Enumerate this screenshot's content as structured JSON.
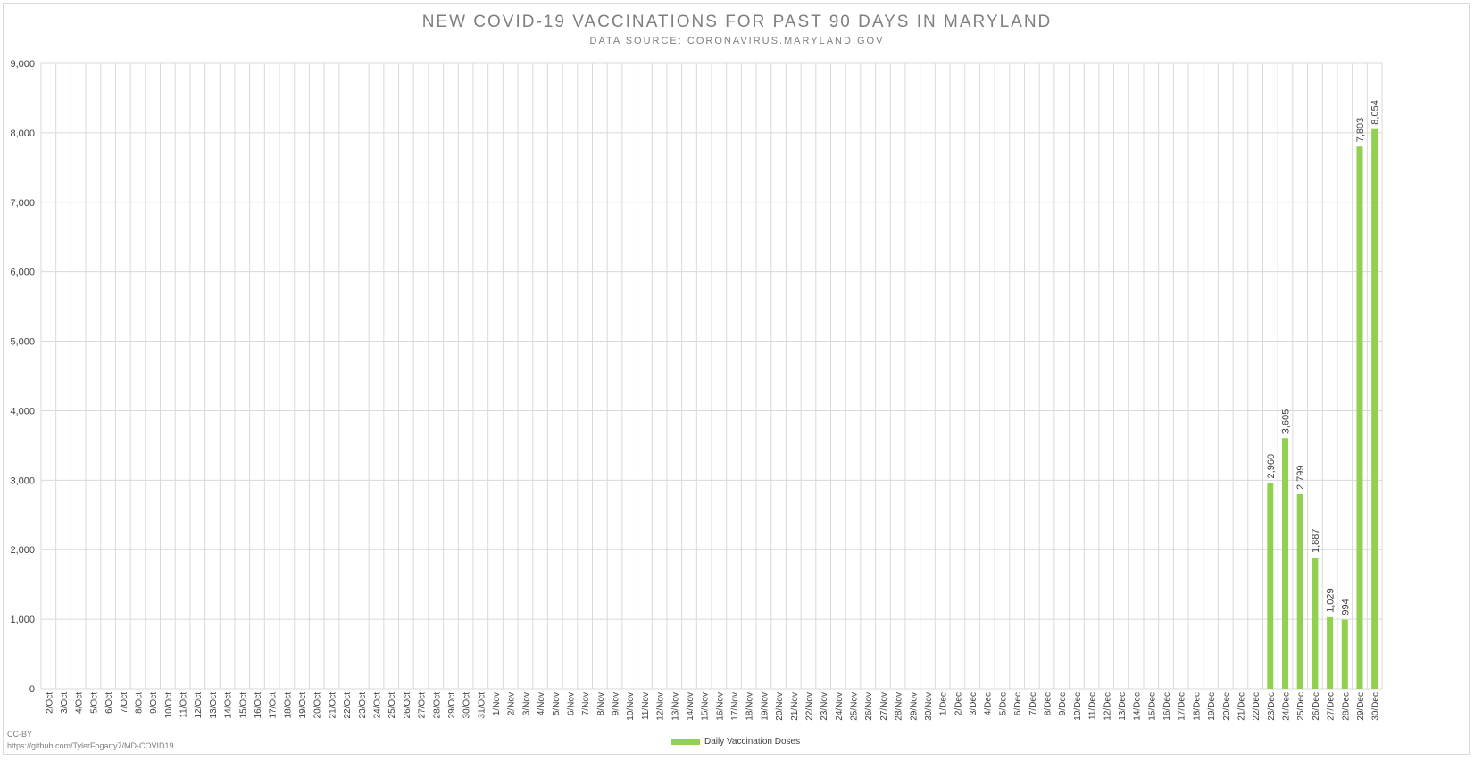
{
  "chart_data": {
    "type": "bar",
    "title": "NEW COVID-19 VACCINATIONS FOR PAST 90 DAYS IN MARYLAND",
    "subtitle": "DATA SOURCE: CORONAVIRUS.MARYLAND.GOV",
    "xlabel": "",
    "ylabel": "",
    "ylim": [
      0,
      9000
    ],
    "yticks": [
      0,
      1000,
      2000,
      3000,
      4000,
      5000,
      6000,
      7000,
      8000,
      9000
    ],
    "ytick_labels": [
      "0",
      "1,000",
      "2,000",
      "3,000",
      "4,000",
      "5,000",
      "6,000",
      "7,000",
      "8,000",
      "9,000"
    ],
    "grid": true,
    "legend_position": "bottom",
    "categories": [
      "2/Oct",
      "3/Oct",
      "4/Oct",
      "5/Oct",
      "6/Oct",
      "7/Oct",
      "8/Oct",
      "9/Oct",
      "10/Oct",
      "11/Oct",
      "12/Oct",
      "13/Oct",
      "14/Oct",
      "15/Oct",
      "16/Oct",
      "17/Oct",
      "18/Oct",
      "19/Oct",
      "20/Oct",
      "21/Oct",
      "22/Oct",
      "23/Oct",
      "24/Oct",
      "25/Oct",
      "26/Oct",
      "27/Oct",
      "28/Oct",
      "29/Oct",
      "30/Oct",
      "31/Oct",
      "1/Nov",
      "2/Nov",
      "3/Nov",
      "4/Nov",
      "5/Nov",
      "6/Nov",
      "7/Nov",
      "8/Nov",
      "9/Nov",
      "10/Nov",
      "11/Nov",
      "12/Nov",
      "13/Nov",
      "14/Nov",
      "15/Nov",
      "16/Nov",
      "17/Nov",
      "18/Nov",
      "19/Nov",
      "20/Nov",
      "21/Nov",
      "22/Nov",
      "23/Nov",
      "24/Nov",
      "25/Nov",
      "26/Nov",
      "27/Nov",
      "28/Nov",
      "29/Nov",
      "30/Nov",
      "1/Dec",
      "2/Dec",
      "3/Dec",
      "4/Dec",
      "5/Dec",
      "6/Dec",
      "7/Dec",
      "8/Dec",
      "9/Dec",
      "10/Dec",
      "11/Dec",
      "12/Dec",
      "13/Dec",
      "14/Dec",
      "15/Dec",
      "16/Dec",
      "17/Dec",
      "18/Dec",
      "19/Dec",
      "20/Dec",
      "21/Dec",
      "22/Dec",
      "23/Dec",
      "24/Dec",
      "25/Dec",
      "26/Dec",
      "27/Dec",
      "28/Dec",
      "29/Dec",
      "30/Dec"
    ],
    "series": [
      {
        "name": "Daily Vaccination Doses",
        "color": "#92d050",
        "values": [
          null,
          null,
          null,
          null,
          null,
          null,
          null,
          null,
          null,
          null,
          null,
          null,
          null,
          null,
          null,
          null,
          null,
          null,
          null,
          null,
          null,
          null,
          null,
          null,
          null,
          null,
          null,
          null,
          null,
          null,
          null,
          null,
          null,
          null,
          null,
          null,
          null,
          null,
          null,
          null,
          null,
          null,
          null,
          null,
          null,
          null,
          null,
          null,
          null,
          null,
          null,
          null,
          null,
          null,
          null,
          null,
          null,
          null,
          null,
          null,
          null,
          null,
          null,
          null,
          null,
          null,
          null,
          null,
          null,
          null,
          null,
          null,
          null,
          null,
          null,
          null,
          null,
          null,
          null,
          null,
          null,
          null,
          2960,
          3605,
          2799,
          1887,
          1029,
          994,
          7803,
          8054
        ],
        "data_labels": [
          null,
          null,
          null,
          null,
          null,
          null,
          null,
          null,
          null,
          null,
          null,
          null,
          null,
          null,
          null,
          null,
          null,
          null,
          null,
          null,
          null,
          null,
          null,
          null,
          null,
          null,
          null,
          null,
          null,
          null,
          null,
          null,
          null,
          null,
          null,
          null,
          null,
          null,
          null,
          null,
          null,
          null,
          null,
          null,
          null,
          null,
          null,
          null,
          null,
          null,
          null,
          null,
          null,
          null,
          null,
          null,
          null,
          null,
          null,
          null,
          null,
          null,
          null,
          null,
          null,
          null,
          null,
          null,
          null,
          null,
          null,
          null,
          null,
          null,
          null,
          null,
          null,
          null,
          null,
          null,
          null,
          null,
          "2,960",
          "3,605",
          "2,799",
          "1,887",
          "1,029",
          "994",
          "7,803",
          "8,054"
        ]
      }
    ]
  },
  "footer": {
    "license": "CC-BY",
    "url": "https://github.com/TylerFogarty7/MD-COVID19"
  },
  "colors": {
    "gridline": "#d9d9d9",
    "axis_text": "#404040",
    "title_text": "#7f7f7f"
  }
}
